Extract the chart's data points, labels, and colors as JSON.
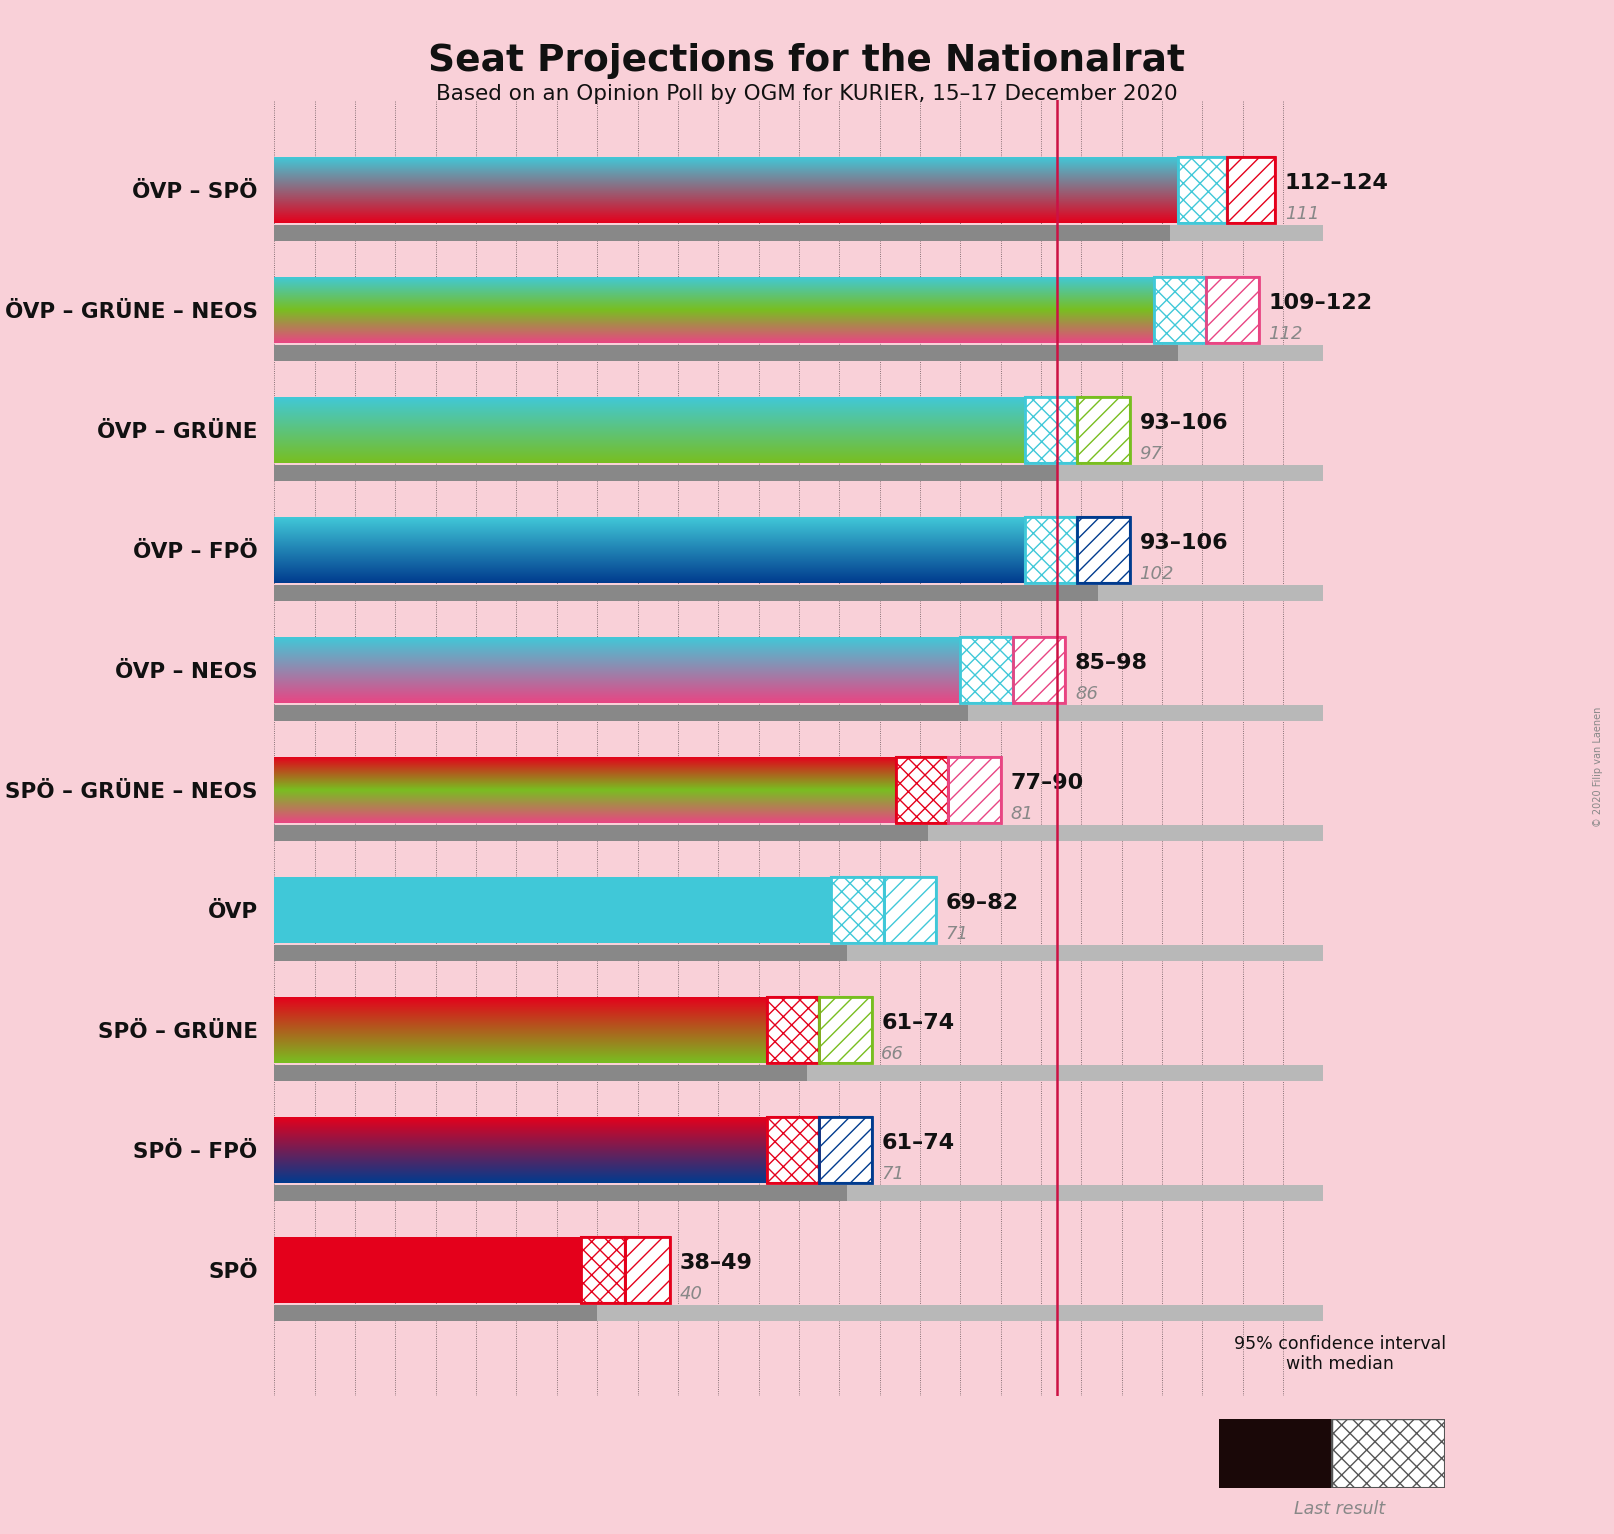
{
  "title": "Seat Projections for the Nationalrat",
  "subtitle": "Based on an Opinion Poll by OGM for KURIER, 15–17 December 2020",
  "copyright": "© 2020 Filip van Laenen",
  "background_color": "#f9d0d8",
  "majority_line": 97,
  "coalitions": [
    {
      "name": "ÖVP – SPÖ",
      "underline": false,
      "parties": [
        "ÖVP",
        "SPÖ"
      ],
      "bar_colors": [
        "#40C8D8",
        "#E4001B"
      ],
      "ci_low": 112,
      "ci_high": 124,
      "last_result": 111
    },
    {
      "name": "ÖVP – GRÜNE – NEOS",
      "underline": false,
      "parties": [
        "ÖVP",
        "GRÜNE",
        "NEOS"
      ],
      "bar_colors": [
        "#40C8D8",
        "#78BE20",
        "#E84583"
      ],
      "ci_low": 109,
      "ci_high": 122,
      "last_result": 112
    },
    {
      "name": "ÖVP – GRÜNE",
      "underline": true,
      "parties": [
        "ÖVP",
        "GRÜNE"
      ],
      "bar_colors": [
        "#40C8D8",
        "#78BE20"
      ],
      "ci_low": 93,
      "ci_high": 106,
      "last_result": 97
    },
    {
      "name": "ÖVP – FPÖ",
      "underline": false,
      "parties": [
        "ÖVP",
        "FPÖ"
      ],
      "bar_colors": [
        "#40C8D8",
        "#003B8E"
      ],
      "ci_low": 93,
      "ci_high": 106,
      "last_result": 102
    },
    {
      "name": "ÖVP – NEOS",
      "underline": false,
      "parties": [
        "ÖVP",
        "NEOS"
      ],
      "bar_colors": [
        "#40C8D8",
        "#E84583"
      ],
      "ci_low": 85,
      "ci_high": 98,
      "last_result": 86
    },
    {
      "name": "SPÖ – GRÜNE – NEOS",
      "underline": false,
      "parties": [
        "SPÖ",
        "GRÜNE",
        "NEOS"
      ],
      "bar_colors": [
        "#E4001B",
        "#78BE20",
        "#E84583"
      ],
      "ci_low": 77,
      "ci_high": 90,
      "last_result": 81
    },
    {
      "name": "ÖVP",
      "underline": false,
      "parties": [
        "ÖVP"
      ],
      "bar_colors": [
        "#40C8D8"
      ],
      "ci_low": 69,
      "ci_high": 82,
      "last_result": 71
    },
    {
      "name": "SPÖ – GRÜNE",
      "underline": false,
      "parties": [
        "SPÖ",
        "GRÜNE"
      ],
      "bar_colors": [
        "#E4001B",
        "#78BE20"
      ],
      "ci_low": 61,
      "ci_high": 74,
      "last_result": 66
    },
    {
      "name": "SPÖ – FPÖ",
      "underline": false,
      "parties": [
        "SPÖ",
        "FPÖ"
      ],
      "bar_colors": [
        "#E4001B",
        "#003B8E"
      ],
      "ci_low": 61,
      "ci_high": 74,
      "last_result": 71
    },
    {
      "name": "SPÖ",
      "underline": false,
      "parties": [
        "SPÖ"
      ],
      "bar_colors": [
        "#E4001B"
      ],
      "ci_low": 38,
      "ci_high": 49,
      "last_result": 40
    }
  ]
}
